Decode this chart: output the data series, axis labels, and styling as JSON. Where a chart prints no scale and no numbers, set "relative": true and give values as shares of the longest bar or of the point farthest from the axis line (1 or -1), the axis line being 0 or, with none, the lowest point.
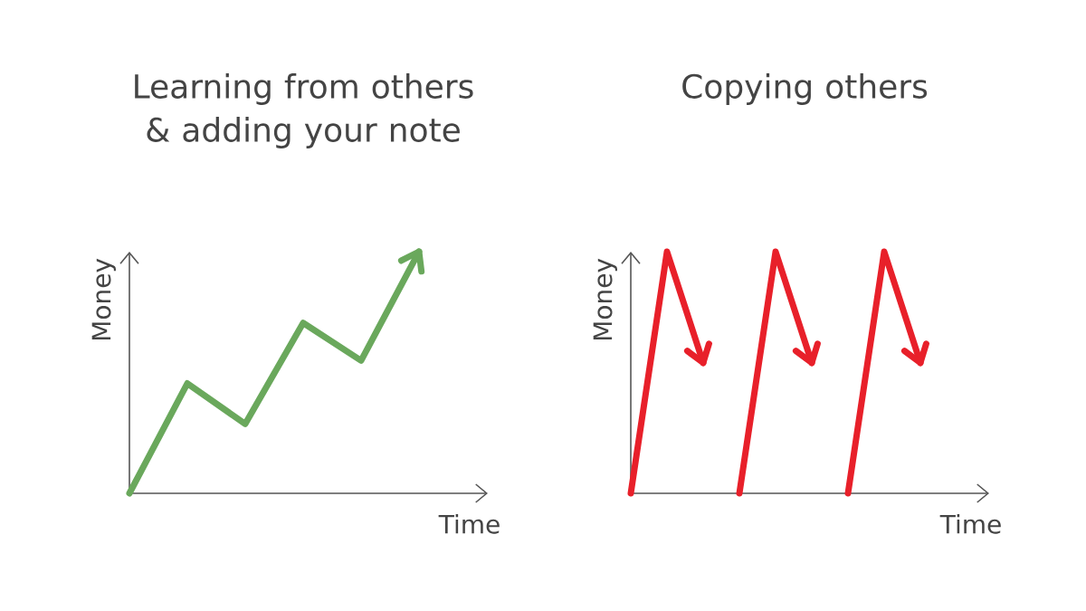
{
  "chart_data": [
    {
      "type": "line",
      "title": "Learning from others & adding your note",
      "xlabel": "Time",
      "ylabel": "Money",
      "relative": true,
      "tick_labels": false,
      "categories": [
        null,
        null,
        null,
        null,
        null,
        null
      ],
      "series": [
        {
          "color": "#6aa85c",
          "values": [
            0,
            0.455,
            0.287,
            0.705,
            0.549,
            1
          ]
        }
      ]
    },
    {
      "type": "line",
      "title": "Copying others",
      "xlabel": "Time",
      "ylabel": "Money",
      "relative": true,
      "tick_labels": false,
      "categories": [
        null,
        null,
        null,
        null,
        null,
        null,
        null,
        null,
        null
      ],
      "series": [
        {
          "color": "#e8202a",
          "values": [
            0,
            1,
            0.54,
            null,
            null,
            null,
            null,
            null,
            null
          ]
        },
        {
          "color": "#e8202a",
          "values": [
            null,
            null,
            null,
            0,
            1,
            0.54,
            null,
            null,
            null
          ]
        },
        {
          "color": "#e8202a",
          "values": [
            null,
            null,
            null,
            null,
            null,
            null,
            0,
            1,
            0.54
          ]
        }
      ]
    }
  ]
}
